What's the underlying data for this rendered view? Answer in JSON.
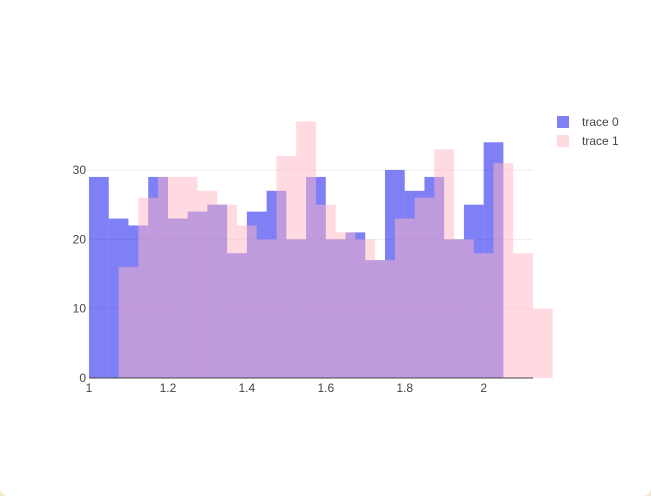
{
  "chart_data": {
    "type": "bar",
    "barmode": "overlay",
    "x_start": 1.0,
    "bin_width": 0.05,
    "xlim": [
      1.0,
      2.125
    ],
    "ylim": [
      0,
      40
    ],
    "x_ticks": [
      1,
      1.2,
      1.4,
      1.6,
      1.8,
      2
    ],
    "x_tick_labels": [
      "1",
      "1.2",
      "1.4",
      "1.6",
      "1.8",
      "2"
    ],
    "y_ticks": [
      0,
      10,
      20,
      30
    ],
    "y_tick_labels": [
      "0",
      "10",
      "20",
      "30"
    ],
    "grid": true,
    "legend_position": "top-right",
    "series": [
      {
        "name": "trace 0",
        "color": "#0000ee",
        "opacity": 0.5,
        "x_start": 1.0,
        "bin_width": 0.05,
        "values": [
          29,
          23,
          22,
          29,
          23,
          24,
          25,
          18,
          24,
          27,
          20,
          29,
          20,
          21,
          17,
          30,
          27,
          29,
          20,
          25,
          34
        ]
      },
      {
        "name": "trace 1",
        "color": "#ffb6c1",
        "opacity": 0.5,
        "x_start": 1.075,
        "bin_width": 0.05,
        "values": [
          16,
          26,
          29,
          29,
          27,
          25,
          22,
          20,
          32,
          37,
          25,
          21,
          20,
          17,
          23,
          26,
          33,
          20,
          18,
          31,
          18,
          10
        ]
      }
    ]
  }
}
